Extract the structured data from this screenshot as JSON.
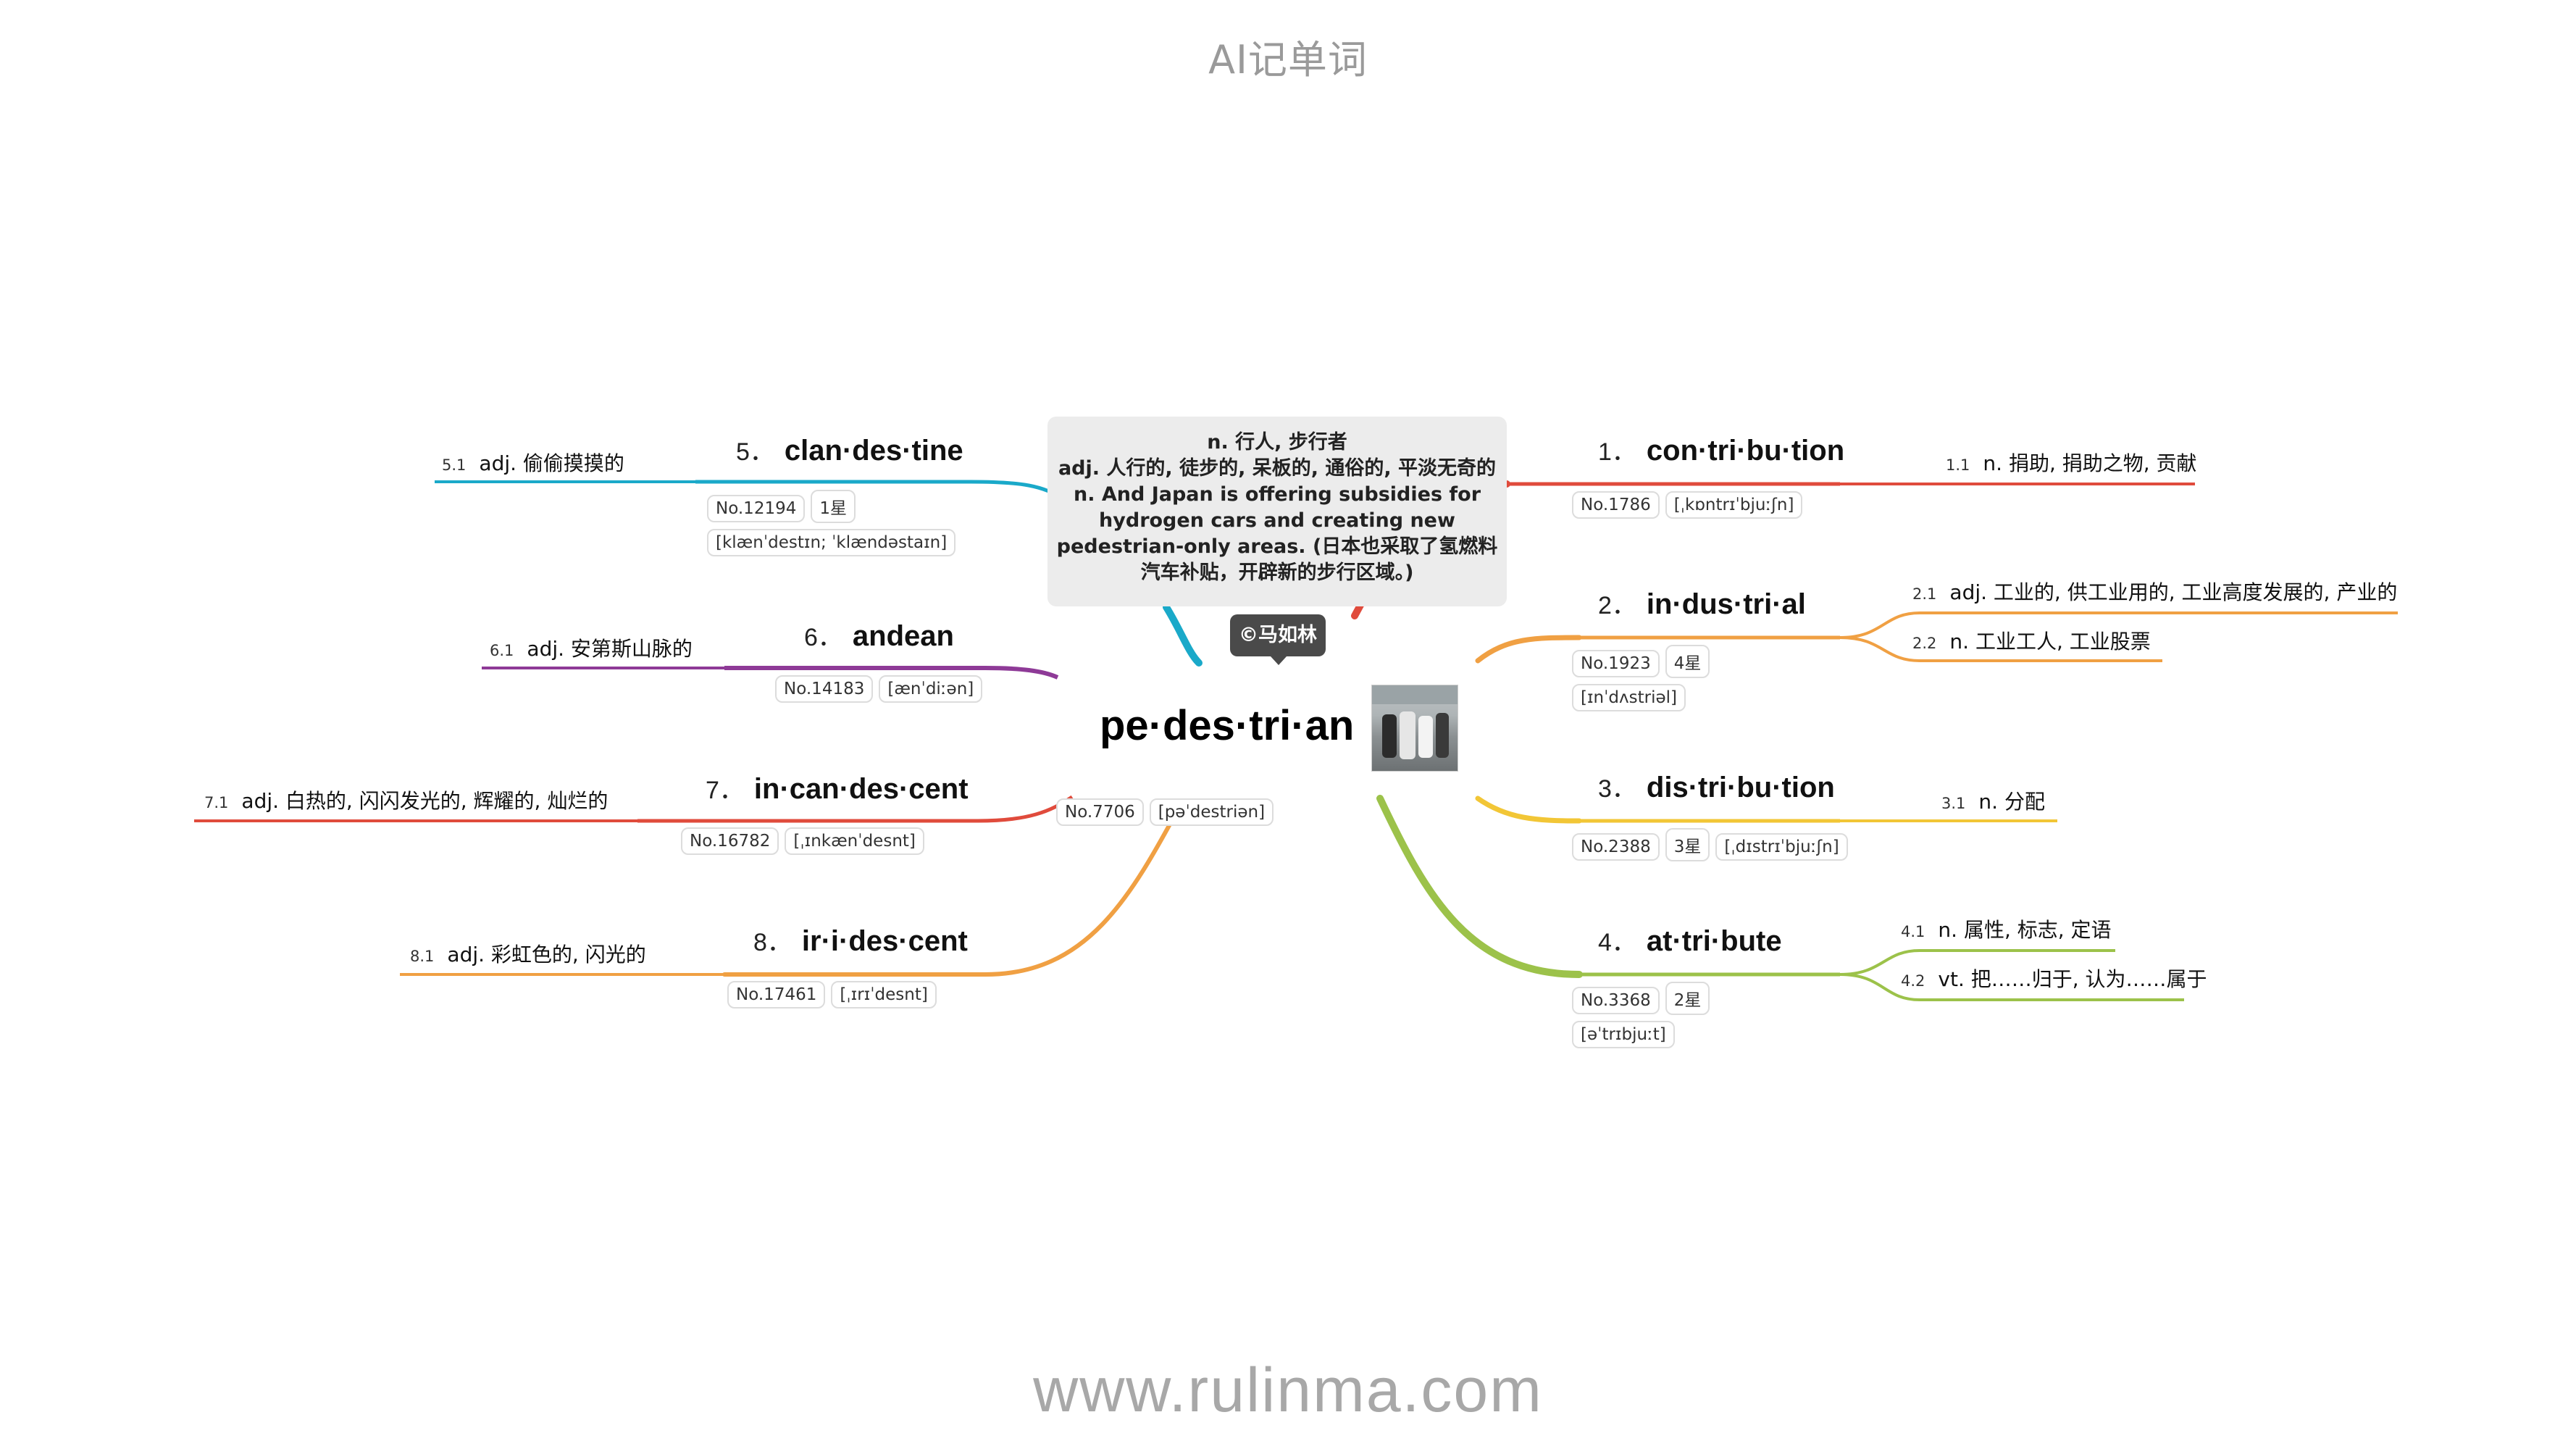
{
  "app_title": "AI记单词",
  "footer_url": "www.rulinma.com",
  "copyright": "©马如林",
  "center": {
    "word": "pe·des·tri·an",
    "number": "No.7706",
    "phonetic": "[pəˈdestriən]",
    "image_icon": "pedestrians-photo",
    "note_lines": [
      "n. 行人, 步行者",
      "adj. 人行的, 徒步的, 呆板的, 通俗的, 平淡无奇的",
      "n. And Japan is offering subsidies for",
      "hydrogen cars and creating new",
      "pedestrian-only areas. (日本也采取了氢燃料",
      "汽车补贴，开辟新的步行区域。)"
    ]
  },
  "branches": [
    {
      "index": "1．",
      "word": "con·tri·bu·tion",
      "color": "#e04b3c",
      "chips": [
        "No.1786",
        "[ˌkɒntrɪˈbjuːʃn]"
      ],
      "defs": [
        {
          "num": "1.1",
          "text": "n. 捐助, 捐助之物, 贡献"
        }
      ]
    },
    {
      "index": "2．",
      "word": "in·dus·tri·al",
      "color": "#f0a043",
      "chips": [
        "No.1923",
        "4星",
        "[ɪnˈdʌstriəl]"
      ],
      "defs": [
        {
          "num": "2.1",
          "text": "adj. 工业的, 供工业用的, 工业高度发展的, 产业的"
        },
        {
          "num": "2.2",
          "text": "n. 工业工人, 工业股票"
        }
      ]
    },
    {
      "index": "3．",
      "word": "dis·tri·bu·tion",
      "color": "#f2c636",
      "chips": [
        "No.2388",
        "3星",
        "[ˌdɪstrɪˈbjuːʃn]"
      ],
      "defs": [
        {
          "num": "3.1",
          "text": "n. 分配"
        }
      ]
    },
    {
      "index": "4．",
      "word": "at·tri·bute",
      "color": "#9cc24a",
      "chips": [
        "No.3368",
        "2星",
        "[əˈtrɪbjuːt]"
      ],
      "defs": [
        {
          "num": "4.1",
          "text": "n. 属性, 标志, 定语"
        },
        {
          "num": "4.2",
          "text": "vt. 把……归于, 认为……属于"
        }
      ]
    },
    {
      "index": "5．",
      "word": "clan·des·tine",
      "color": "#1aa9c9",
      "chips": [
        "No.12194",
        "1星",
        "[klænˈdestɪn; ˈklændəstaɪn]"
      ],
      "defs": [
        {
          "num": "5.1",
          "text": "adj. 偷偷摸摸的"
        }
      ]
    },
    {
      "index": "6．",
      "word": "andean",
      "color": "#8e3a97",
      "chips": [
        "No.14183",
        "[ænˈdiːən]"
      ],
      "defs": [
        {
          "num": "6.1",
          "text": "adj. 安第斯山脉的"
        }
      ]
    },
    {
      "index": "7．",
      "word": "in·can·des·cent",
      "color": "#e04b3c",
      "chips": [
        "No.16782",
        "[ˌɪnkænˈdesnt]"
      ],
      "defs": [
        {
          "num": "7.1",
          "text": "adj. 白热的, 闪闪发光的, 辉耀的, 灿烂的"
        }
      ]
    },
    {
      "index": "8．",
      "word": "ir·i·des·cent",
      "color": "#f0a043",
      "chips": [
        "No.17461",
        "[ˌɪrɪˈdesnt]"
      ],
      "defs": [
        {
          "num": "8.1",
          "text": "adj. 彩虹色的, 闪光的"
        }
      ]
    }
  ]
}
